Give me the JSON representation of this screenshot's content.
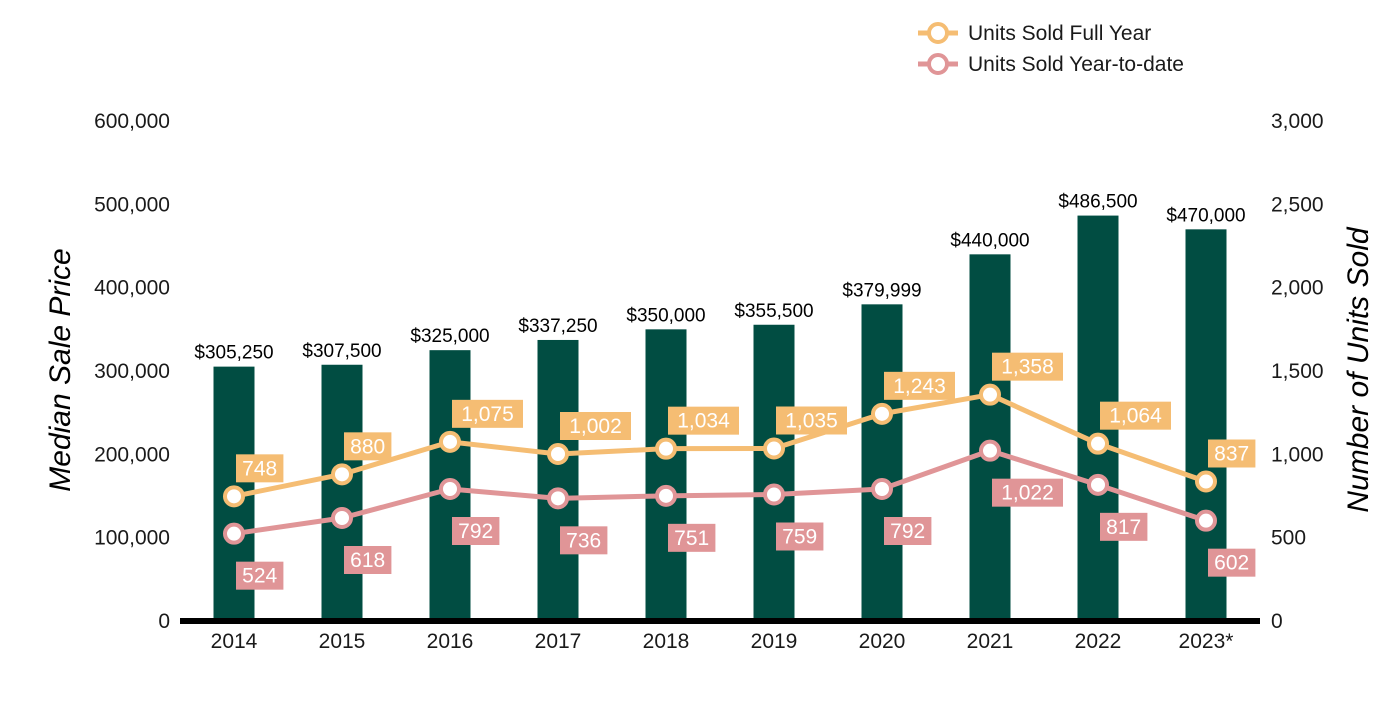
{
  "chart_data": {
    "type": "bar",
    "categories": [
      "2014",
      "2015",
      "2016",
      "2017",
      "2018",
      "2019",
      "2020",
      "2021",
      "2022",
      "2023*"
    ],
    "bars": {
      "axis": "left",
      "values": [
        305250,
        307500,
        325000,
        337250,
        350000,
        355500,
        379999,
        440000,
        486500,
        470000
      ],
      "labels": [
        "$305,250",
        "$307,500",
        "$325,000",
        "$337,250",
        "$350,000",
        "$355,500",
        "$379,999",
        "$440,000",
        "$486,500",
        "$470,000"
      ],
      "color": "#014d42"
    },
    "series": [
      {
        "name": "Units Sold Full Year",
        "type": "line",
        "axis": "right",
        "color": "#f5bd73",
        "values": [
          748,
          880,
          1075,
          1002,
          1034,
          1035,
          1243,
          1358,
          1064,
          837
        ],
        "labels": [
          "748",
          "880",
          "1,075",
          "1,002",
          "1,034",
          "1,035",
          "1,243",
          "1,358",
          "1,064",
          "837"
        ]
      },
      {
        "name": "Units Sold Year-to-date",
        "type": "line",
        "axis": "right",
        "color": "#e09597",
        "values": [
          524,
          618,
          792,
          736,
          751,
          759,
          792,
          1022,
          817,
          602
        ],
        "labels": [
          "524",
          "618",
          "792",
          "736",
          "751",
          "759",
          "792",
          "1,022",
          "817",
          "602"
        ]
      }
    ],
    "ylabel": "Median Sale Price",
    "y2label": "Number of Units Sold",
    "ylim": [
      0,
      600000
    ],
    "y2lim": [
      0,
      3000
    ],
    "yticks": [
      "0",
      "100,000",
      "200,000",
      "300,000",
      "400,000",
      "500,000",
      "600,000"
    ],
    "y2ticks": [
      "0",
      "500",
      "1,000",
      "1,500",
      "2,000",
      "2,500",
      "3,000"
    ],
    "grid": false,
    "legend": "top-right"
  }
}
